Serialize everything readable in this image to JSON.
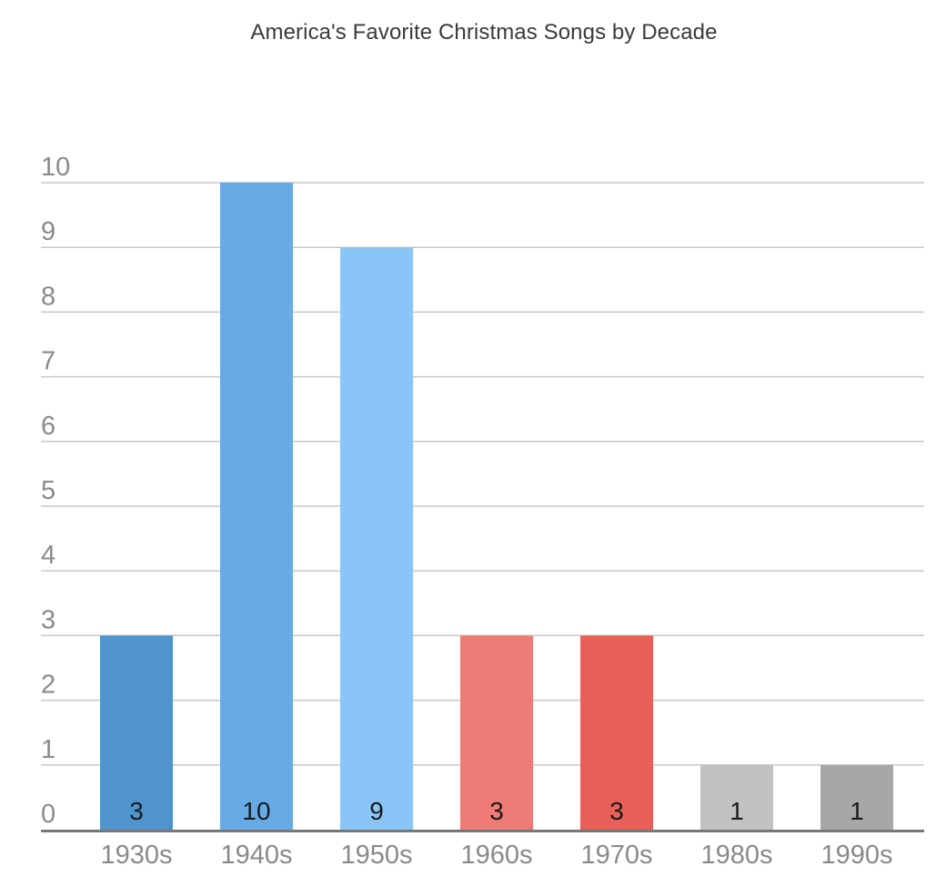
{
  "chart_data": {
    "type": "bar",
    "title": "America's Favorite Christmas Songs by Decade",
    "categories": [
      "1930s",
      "1940s",
      "1950s",
      "1960s",
      "1970s",
      "1980s",
      "1990s"
    ],
    "values": [
      3,
      10,
      9,
      3,
      3,
      1,
      1
    ],
    "bar_colors": [
      "#4f94cf",
      "#67abe6",
      "#89c6f7",
      "#ef7b77",
      "#e85f57",
      "#c2c2c2",
      "#a7a7a7"
    ],
    "xlabel": "",
    "ylabel": "",
    "ylim": [
      0,
      10
    ],
    "yticks": [
      "0",
      "1",
      "2",
      "3",
      "4",
      "5",
      "6",
      "7",
      "8",
      "9",
      "10"
    ],
    "data_labels": [
      "3",
      "10",
      "9",
      "3",
      "3",
      "1",
      "1"
    ],
    "grid": true,
    "legend": "none"
  }
}
